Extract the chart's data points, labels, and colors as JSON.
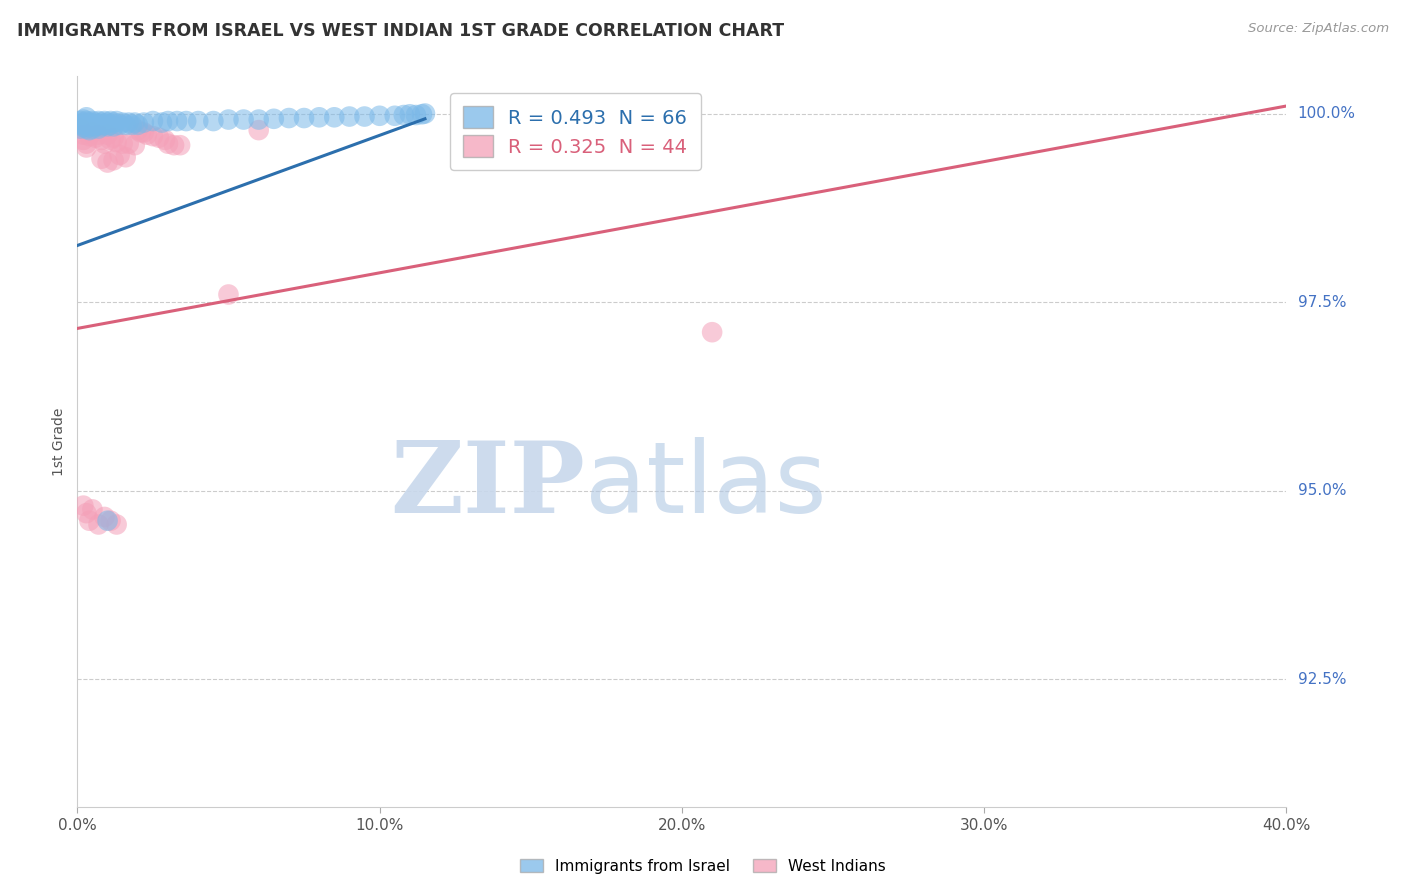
{
  "title": "IMMIGRANTS FROM ISRAEL VS WEST INDIAN 1ST GRADE CORRELATION CHART",
  "source": "Source: ZipAtlas.com",
  "ylabel": "1st Grade",
  "ylabel_right_labels": [
    "100.0%",
    "97.5%",
    "95.0%",
    "92.5%"
  ],
  "ylabel_right_values": [
    1.0,
    0.975,
    0.95,
    0.925
  ],
  "xlim": [
    0.0,
    0.4
  ],
  "ylim": [
    0.908,
    1.005
  ],
  "yticks": [
    1.0,
    0.975,
    0.95,
    0.925
  ],
  "xticks": [
    0.0,
    0.1,
    0.2,
    0.3,
    0.4
  ],
  "xtick_labels": [
    "0.0%",
    "10.0%",
    "20.0%",
    "30.0%",
    "40.0%"
  ],
  "legend_blue_label": "R = 0.493  N = 66",
  "legend_pink_label": "R = 0.325  N = 44",
  "blue_label": "Immigrants from Israel",
  "pink_label": "West Indians",
  "blue_color": "#7ab8e8",
  "pink_color": "#f4a0b8",
  "blue_line_color": "#2c6fad",
  "pink_line_color": "#d9607a",
  "watermark_zip": "ZIP",
  "watermark_atlas": "atlas",
  "blue_line_x": [
    0.0,
    0.115
  ],
  "blue_line_y": [
    0.9825,
    0.9993
  ],
  "pink_line_x": [
    0.0,
    0.4
  ],
  "pink_line_y": [
    0.9715,
    1.001
  ],
  "blue_scatter_x": [
    0.001,
    0.001,
    0.001,
    0.002,
    0.002,
    0.002,
    0.002,
    0.003,
    0.003,
    0.003,
    0.003,
    0.004,
    0.004,
    0.004,
    0.005,
    0.005,
    0.005,
    0.006,
    0.006,
    0.007,
    0.007,
    0.007,
    0.008,
    0.008,
    0.009,
    0.009,
    0.01,
    0.01,
    0.011,
    0.011,
    0.012,
    0.012,
    0.013,
    0.014,
    0.015,
    0.016,
    0.017,
    0.018,
    0.019,
    0.02,
    0.022,
    0.025,
    0.028,
    0.03,
    0.033,
    0.036,
    0.04,
    0.045,
    0.05,
    0.055,
    0.06,
    0.065,
    0.07,
    0.075,
    0.08,
    0.085,
    0.09,
    0.095,
    0.1,
    0.105,
    0.108,
    0.11,
    0.112,
    0.114,
    0.115,
    0.01
  ],
  "blue_scatter_y": [
    0.999,
    0.9985,
    0.998,
    0.9992,
    0.9988,
    0.9985,
    0.9982,
    0.9995,
    0.999,
    0.9985,
    0.998,
    0.9988,
    0.9983,
    0.9978,
    0.999,
    0.9985,
    0.998,
    0.9988,
    0.9983,
    0.999,
    0.9985,
    0.998,
    0.9988,
    0.9983,
    0.999,
    0.9985,
    0.9988,
    0.9983,
    0.999,
    0.9985,
    0.9988,
    0.9983,
    0.999,
    0.9985,
    0.9988,
    0.9985,
    0.9988,
    0.9985,
    0.9988,
    0.9985,
    0.9988,
    0.999,
    0.9988,
    0.999,
    0.999,
    0.999,
    0.999,
    0.999,
    0.9992,
    0.9992,
    0.9992,
    0.9993,
    0.9994,
    0.9994,
    0.9995,
    0.9995,
    0.9996,
    0.9996,
    0.9997,
    0.9997,
    0.9998,
    0.9999,
    0.9998,
    0.9999,
    1.0,
    0.946
  ],
  "pink_scatter_x": [
    0.001,
    0.002,
    0.002,
    0.003,
    0.003,
    0.004,
    0.005,
    0.006,
    0.007,
    0.008,
    0.009,
    0.01,
    0.011,
    0.012,
    0.013,
    0.015,
    0.017,
    0.019,
    0.021,
    0.023,
    0.025,
    0.027,
    0.029,
    0.03,
    0.032,
    0.034,
    0.02,
    0.022,
    0.008,
    0.01,
    0.012,
    0.014,
    0.016,
    0.05,
    0.06,
    0.21,
    0.002,
    0.003,
    0.004,
    0.005,
    0.007,
    0.009,
    0.011,
    0.013
  ],
  "pink_scatter_y": [
    0.998,
    0.9972,
    0.9965,
    0.996,
    0.9955,
    0.997,
    0.9975,
    0.9968,
    0.9972,
    0.9965,
    0.996,
    0.9972,
    0.9965,
    0.9968,
    0.9962,
    0.996,
    0.996,
    0.9958,
    0.9975,
    0.9972,
    0.997,
    0.9968,
    0.9965,
    0.996,
    0.9958,
    0.9958,
    0.9978,
    0.9975,
    0.994,
    0.9935,
    0.9938,
    0.9945,
    0.9942,
    0.976,
    0.9978,
    0.971,
    0.948,
    0.947,
    0.946,
    0.9475,
    0.9455,
    0.9465,
    0.946,
    0.9455
  ]
}
